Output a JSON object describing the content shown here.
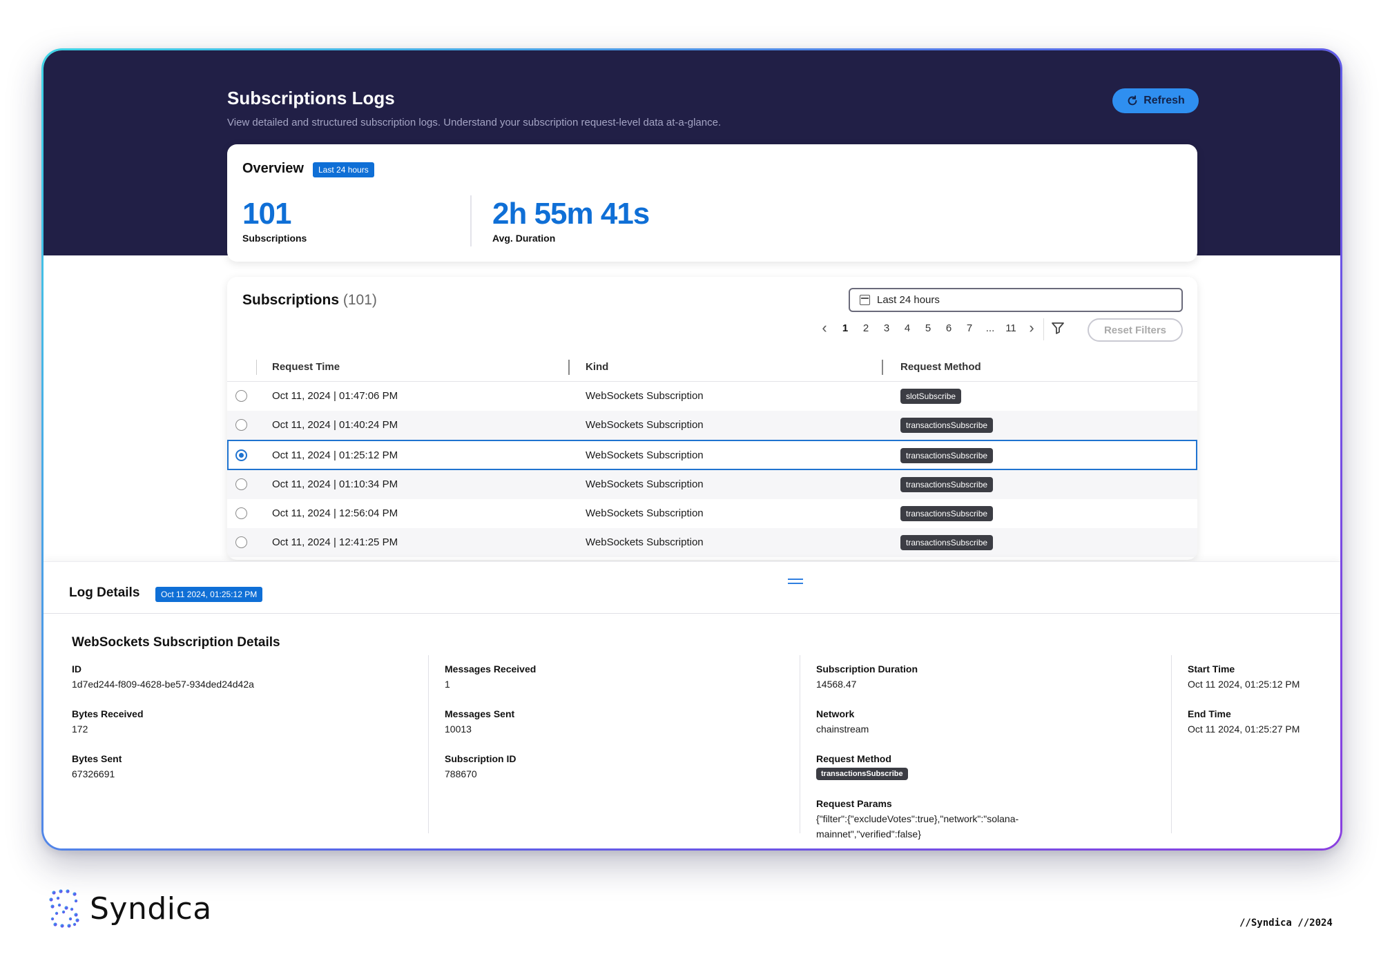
{
  "header": {
    "title": "Subscriptions Logs",
    "subtitle": "View detailed and structured subscription logs. Understand your subscription request-level data at-a-glance.",
    "refresh_label": "Refresh"
  },
  "overview": {
    "title": "Overview",
    "range_badge": "Last 24 hours",
    "subscriptions_value": "101",
    "subscriptions_label": "Subscriptions",
    "duration_value": "2h 55m 41s",
    "duration_label": "Avg. Duration"
  },
  "subscriptions": {
    "title": "Subscriptions",
    "count": "(101)",
    "date_range": "Last 24 hours",
    "pages": [
      "1",
      "2",
      "3",
      "4",
      "5",
      "6",
      "7",
      "...",
      "11"
    ],
    "current_page": "1",
    "reset_label": "Reset Filters",
    "columns": [
      "Request Time",
      "Kind",
      "Request Method"
    ],
    "rows": [
      {
        "time": "Oct 11, 2024 | 01:47:06 PM",
        "kind": "WebSockets Subscription",
        "method": "slotSubscribe",
        "selected": false
      },
      {
        "time": "Oct 11, 2024 | 01:40:24 PM",
        "kind": "WebSockets Subscription",
        "method": "transactionsSubscribe",
        "selected": false
      },
      {
        "time": "Oct 11, 2024 | 01:25:12 PM",
        "kind": "WebSockets Subscription",
        "method": "transactionsSubscribe",
        "selected": true
      },
      {
        "time": "Oct 11, 2024 | 01:10:34 PM",
        "kind": "WebSockets Subscription",
        "method": "transactionsSubscribe",
        "selected": false
      },
      {
        "time": "Oct 11, 2024 | 12:56:04 PM",
        "kind": "WebSockets Subscription",
        "method": "transactionsSubscribe",
        "selected": false
      },
      {
        "time": "Oct 11, 2024 | 12:41:25 PM",
        "kind": "WebSockets Subscription",
        "method": "transactionsSubscribe",
        "selected": false
      }
    ]
  },
  "log_details": {
    "title": "Log Details",
    "timestamp_badge": "Oct 11 2024, 01:25:12 PM",
    "section_title": "WebSockets Subscription Details",
    "fields": {
      "id_label": "ID",
      "id_value": "1d7ed244-f809-4628-be57-934ded24d42a",
      "bytes_received_label": "Bytes Received",
      "bytes_received_value": "172",
      "bytes_sent_label": "Bytes Sent",
      "bytes_sent_value": "67326691",
      "messages_received_label": "Messages Received",
      "messages_received_value": "1",
      "messages_sent_label": "Messages Sent",
      "messages_sent_value": "10013",
      "subscription_id_label": "Subscription ID",
      "subscription_id_value": "788670",
      "duration_label": "Subscription Duration",
      "duration_value": "14568.47",
      "network_label": "Network",
      "network_value": "chainstream",
      "method_label": "Request Method",
      "method_value": "transactionsSubscribe",
      "params_label": "Request Params",
      "params_line1": "{\"filter\":{\"excludeVotes\":true},\"network\":\"solana-",
      "params_line2": "mainnet\",\"verified\":false}",
      "start_label": "Start Time",
      "start_value": "Oct 11 2024, 01:25:12 PM",
      "end_label": "End Time",
      "end_value": "Oct 11 2024, 01:25:27 PM"
    }
  },
  "branding": {
    "logo_text": "Syndica",
    "footer_tag": "//Syndica //2024"
  },
  "icons": {
    "refresh": "refresh-icon",
    "calendar": "calendar-icon",
    "filter": "filter-icon",
    "chevron_left": "chevron-left-icon",
    "chevron_right": "chevron-right-icon",
    "drag_handle": "drag-handle-icon",
    "logo": "syndica-logo-icon"
  },
  "colors": {
    "hero_bg": "#211f46",
    "accent_blue": "#0f6fd6",
    "refresh_bg": "#2f8ff0",
    "badge_dark": "#3c3d44"
  }
}
